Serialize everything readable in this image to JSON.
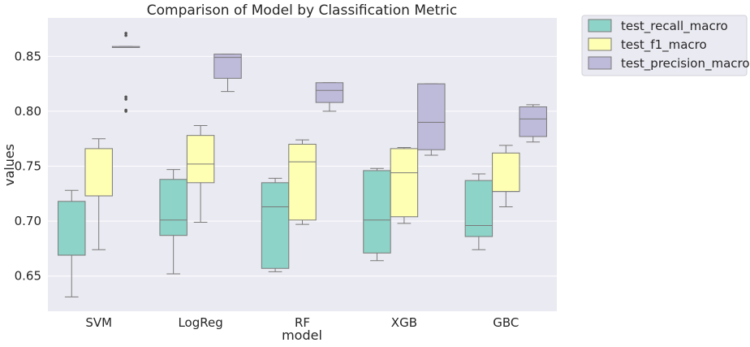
{
  "chart_data": {
    "type": "boxplot",
    "title": "Comparison of Model by Classification Metric",
    "xlabel": "model",
    "ylabel": "values",
    "ylim": [
      0.618,
      0.885
    ],
    "yticks": [
      0.65,
      0.7,
      0.75,
      0.8,
      0.85
    ],
    "ytick_labels": [
      "0.65",
      "0.70",
      "0.75",
      "0.80",
      "0.85"
    ],
    "grid": true,
    "legend_position": "outside-top-right",
    "categories": [
      "SVM",
      "LogReg",
      "RF",
      "XGB",
      "GBC"
    ],
    "series": [
      {
        "name": "test_recall_macro",
        "color": "#8dd3c7",
        "boxes": [
          {
            "whislo": 0.631,
            "q1": 0.669,
            "med": 0.669,
            "q3": 0.718,
            "whishi": 0.728,
            "fliers": []
          },
          {
            "whislo": 0.652,
            "q1": 0.687,
            "med": 0.701,
            "q3": 0.738,
            "whishi": 0.747,
            "fliers": []
          },
          {
            "whislo": 0.654,
            "q1": 0.657,
            "med": 0.713,
            "q3": 0.735,
            "whishi": 0.739,
            "fliers": []
          },
          {
            "whislo": 0.664,
            "q1": 0.671,
            "med": 0.701,
            "q3": 0.746,
            "whishi": 0.748,
            "fliers": []
          },
          {
            "whislo": 0.674,
            "q1": 0.686,
            "med": 0.696,
            "q3": 0.737,
            "whishi": 0.743,
            "fliers": []
          }
        ]
      },
      {
        "name": "test_f1_macro",
        "color": "#ffffb3",
        "boxes": [
          {
            "whislo": 0.674,
            "q1": 0.723,
            "med": 0.723,
            "q3": 0.766,
            "whishi": 0.775,
            "fliers": []
          },
          {
            "whislo": 0.699,
            "q1": 0.735,
            "med": 0.752,
            "q3": 0.778,
            "whishi": 0.787,
            "fliers": []
          },
          {
            "whislo": 0.697,
            "q1": 0.701,
            "med": 0.754,
            "q3": 0.77,
            "whishi": 0.774,
            "fliers": []
          },
          {
            "whislo": 0.698,
            "q1": 0.704,
            "med": 0.744,
            "q3": 0.766,
            "whishi": 0.767,
            "fliers": []
          },
          {
            "whislo": 0.713,
            "q1": 0.727,
            "med": 0.727,
            "q3": 0.762,
            "whishi": 0.769,
            "fliers": []
          }
        ]
      },
      {
        "name": "test_precision_macro",
        "color": "#bebada",
        "boxes": [
          {
            "whislo": 0.858,
            "q1": 0.858,
            "med": 0.858,
            "q3": 0.859,
            "whishi": 0.859,
            "fliers": [
              0.871,
              0.869,
              0.813,
              0.811,
              0.801,
              0.8
            ]
          },
          {
            "whislo": 0.818,
            "q1": 0.83,
            "med": 0.849,
            "q3": 0.852,
            "whishi": 0.852,
            "fliers": []
          },
          {
            "whislo": 0.8,
            "q1": 0.808,
            "med": 0.819,
            "q3": 0.826,
            "whishi": 0.826,
            "fliers": []
          },
          {
            "whislo": 0.76,
            "q1": 0.765,
            "med": 0.79,
            "q3": 0.825,
            "whishi": 0.825,
            "fliers": []
          },
          {
            "whislo": 0.772,
            "q1": 0.777,
            "med": 0.793,
            "q3": 0.804,
            "whishi": 0.806,
            "fliers": []
          }
        ]
      }
    ]
  }
}
